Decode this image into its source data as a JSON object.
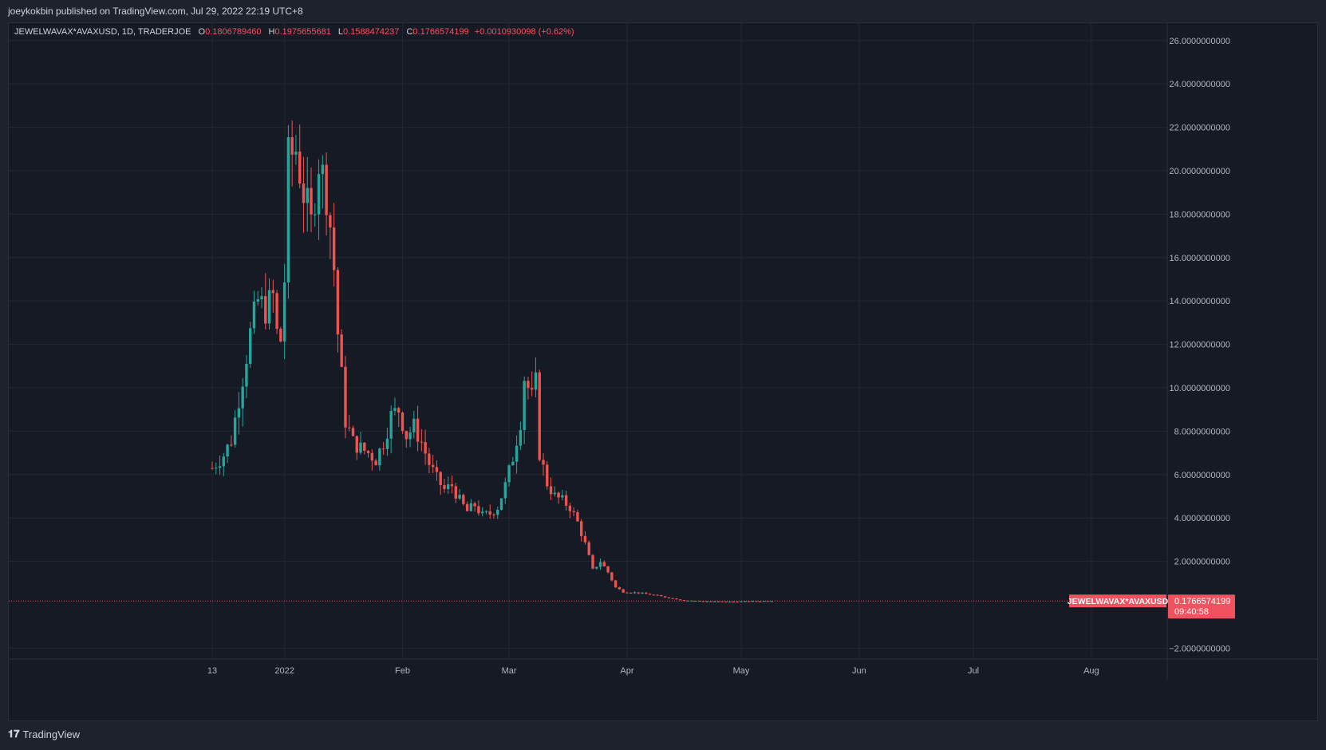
{
  "header": {
    "published": "joeykokbin published on TradingView.com, Jul 29, 2022 22:19 UTC+8"
  },
  "legend": {
    "symbol": "JEWELWAVAX*AVAXUSD, 1D, TRADERJOE",
    "open_label": "O",
    "open": "0.1806789460",
    "high_label": "H",
    "high": "0.1975655681",
    "low_label": "L",
    "low": "0.1588474237",
    "close_label": "C",
    "close": "0.1766574199",
    "change": "+0.0010930098 (+0.62%)"
  },
  "price_tag": {
    "symbol": "JEWELWAVAX*AVAXUSD",
    "price": "0.1766574199",
    "countdown": "09:40:58"
  },
  "footer": {
    "brand": "TradingView"
  },
  "colors": {
    "up": "#26a69a",
    "down": "#ef5350",
    "grid": "#232734",
    "tag": "#f0525f"
  },
  "chart_data": {
    "type": "candlestick",
    "ylim": [
      -2.5,
      26.8
    ],
    "y_ticks": [
      "26.0000000000",
      "24.0000000000",
      "22.0000000000",
      "20.0000000000",
      "18.0000000000",
      "16.0000000000",
      "14.0000000000",
      "12.0000000000",
      "10.0000000000",
      "8.0000000000",
      "6.0000000000",
      "4.0000000000",
      "2.0000000000",
      "-2.0000000000"
    ],
    "x_ticks": [
      {
        "label": "13",
        "day": 0
      },
      {
        "label": "2022",
        "day": 19
      },
      {
        "label": "Feb",
        "day": 50
      },
      {
        "label": "Mar",
        "day": 78
      },
      {
        "label": "Apr",
        "day": 109
      },
      {
        "label": "May",
        "day": 139
      },
      {
        "label": "Jun",
        "day": 170
      },
      {
        "label": "Jul",
        "day": 200
      },
      {
        "label": "Aug",
        "day": 231
      }
    ],
    "last_price": 0.1766574199,
    "anchors": [
      [
        0,
        6.3
      ],
      [
        3,
        6.9
      ],
      [
        5,
        7.6
      ],
      [
        8,
        10.5
      ],
      [
        10,
        12.5
      ],
      [
        12,
        14.0
      ],
      [
        14,
        13.6
      ],
      [
        16,
        14.2
      ],
      [
        17,
        12.5
      ],
      [
        18,
        12.2
      ],
      [
        19,
        15.0
      ],
      [
        20,
        20.5
      ],
      [
        22,
        21.0
      ],
      [
        24,
        19.0
      ],
      [
        26,
        17.5
      ],
      [
        28,
        20.5
      ],
      [
        30,
        19.0
      ],
      [
        31,
        17.5
      ],
      [
        32,
        15.5
      ],
      [
        33,
        12.5
      ],
      [
        34,
        10.5
      ],
      [
        35,
        8.5
      ],
      [
        37,
        7.5
      ],
      [
        39,
        7.2
      ],
      [
        41,
        7.0
      ],
      [
        43,
        6.7
      ],
      [
        45,
        7.5
      ],
      [
        47,
        8.7
      ],
      [
        49,
        9.0
      ],
      [
        51,
        7.8
      ],
      [
        53,
        8.2
      ],
      [
        55,
        7.5
      ],
      [
        57,
        6.5
      ],
      [
        59,
        5.8
      ],
      [
        61,
        5.3
      ],
      [
        63,
        5.5
      ],
      [
        65,
        4.8
      ],
      [
        67,
        4.3
      ],
      [
        69,
        4.6
      ],
      [
        71,
        4.1
      ],
      [
        73,
        4.2
      ],
      [
        75,
        4.5
      ],
      [
        77,
        5.5
      ],
      [
        79,
        6.8
      ],
      [
        81,
        8.5
      ],
      [
        82,
        10.5
      ],
      [
        84,
        9.5
      ],
      [
        85,
        10.2
      ],
      [
        86,
        7.0
      ],
      [
        88,
        5.6
      ],
      [
        90,
        5.0
      ],
      [
        92,
        4.8
      ],
      [
        94,
        4.5
      ],
      [
        96,
        3.8
      ],
      [
        98,
        2.8
      ],
      [
        100,
        1.6
      ],
      [
        102,
        2.0
      ],
      [
        104,
        1.5
      ],
      [
        106,
        0.8
      ],
      [
        108,
        0.6
      ],
      [
        112,
        0.55
      ],
      [
        116,
        0.45
      ],
      [
        120,
        0.32
      ],
      [
        124,
        0.2
      ],
      [
        128,
        0.17
      ],
      [
        132,
        0.15
      ],
      [
        136,
        0.14
      ],
      [
        140,
        0.15
      ],
      [
        145,
        0.17
      ],
      [
        147,
        0.18
      ]
    ]
  }
}
